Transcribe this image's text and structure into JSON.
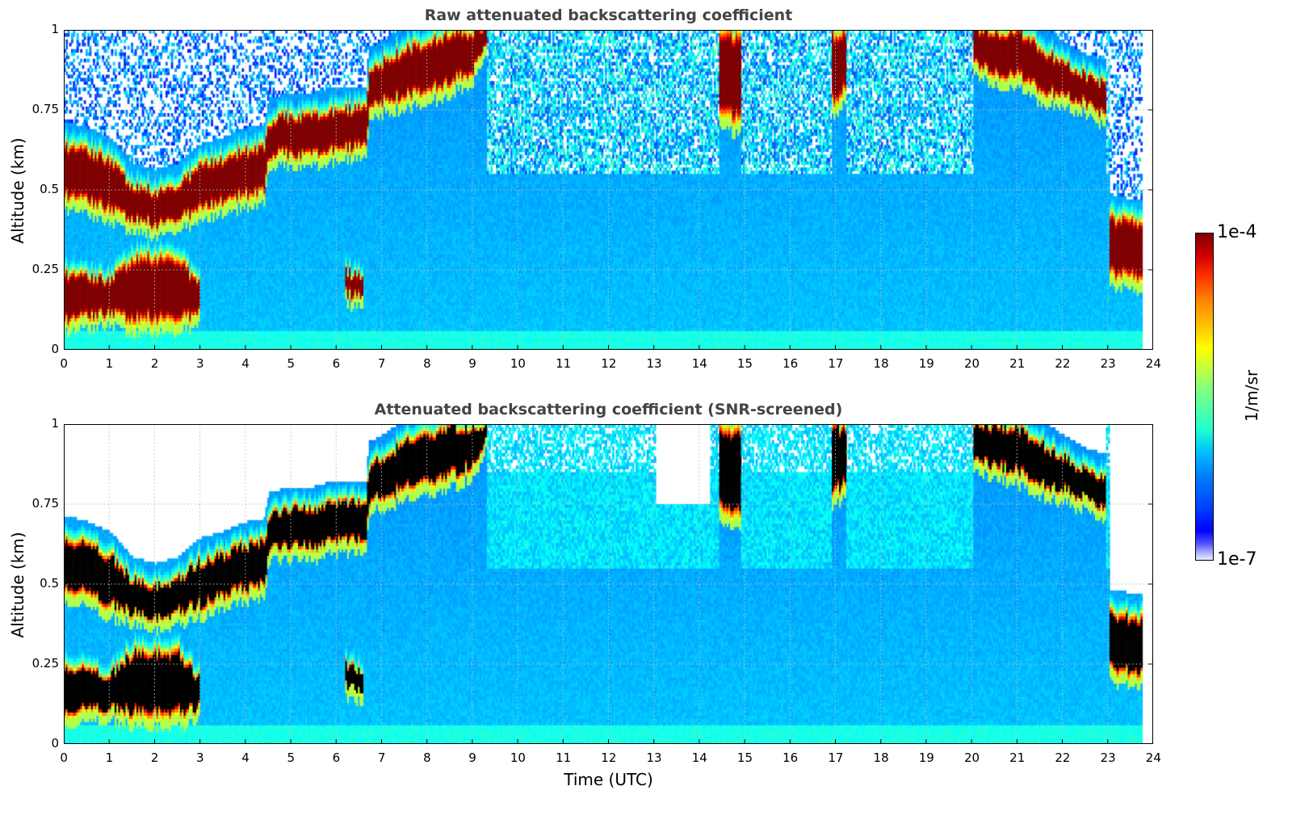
{
  "chart_data": [
    {
      "type": "heatmap",
      "title": "Raw attenuated backscattering coefficient",
      "xlabel": "",
      "ylabel": "Altitude (km)",
      "xlim": [
        0,
        24
      ],
      "ylim": [
        0,
        1
      ],
      "xticks": [
        "0",
        "1",
        "2",
        "3",
        "4",
        "5",
        "6",
        "7",
        "8",
        "9",
        "10",
        "11",
        "12",
        "13",
        "14",
        "15",
        "16",
        "17",
        "18",
        "19",
        "20",
        "21",
        "22",
        "23",
        "24"
      ],
      "yticks": [
        "0",
        "0.25",
        "0.5",
        "0.75",
        "1"
      ],
      "grid": true,
      "screened": false
    },
    {
      "type": "heatmap",
      "title": "Attenuated backscattering coefficient (SNR-screened)",
      "xlabel": "Time (UTC)",
      "ylabel": "Altitude (km)",
      "xlim": [
        0,
        24
      ],
      "ylim": [
        0,
        1
      ],
      "xticks": [
        "0",
        "1",
        "2",
        "3",
        "4",
        "5",
        "6",
        "7",
        "8",
        "9",
        "10",
        "11",
        "12",
        "13",
        "14",
        "15",
        "16",
        "17",
        "18",
        "19",
        "20",
        "21",
        "22",
        "23",
        "24"
      ],
      "yticks": [
        "0",
        "0.25",
        "0.5",
        "0.75",
        "1"
      ],
      "grid": true,
      "screened": true
    }
  ],
  "field": {
    "data_end_hour": 23.75,
    "upper_cloud_segments": [
      [
        [
          0,
          0.47,
          0.65
        ],
        [
          0.5,
          0.45,
          0.63
        ],
        [
          1,
          0.42,
          0.6
        ],
        [
          1.5,
          0.4,
          0.52
        ],
        [
          2,
          0.38,
          0.5
        ],
        [
          2.5,
          0.4,
          0.52
        ],
        [
          3,
          0.42,
          0.58
        ],
        [
          3.5,
          0.45,
          0.6
        ],
        [
          4,
          0.47,
          0.63
        ],
        [
          4.4,
          0.48,
          0.64
        ],
        [
          4.5,
          0.6,
          0.72
        ],
        [
          5,
          0.6,
          0.74
        ],
        [
          5.5,
          0.6,
          0.74
        ],
        [
          6,
          0.62,
          0.76
        ],
        [
          6.65,
          0.62,
          0.76
        ],
        [
          6.7,
          0.75,
          0.88
        ],
        [
          7,
          0.76,
          0.9
        ],
        [
          7.5,
          0.78,
          0.95
        ],
        [
          8,
          0.8,
          0.97
        ],
        [
          8.5,
          0.82,
          1
        ],
        [
          9,
          0.86,
          1
        ],
        [
          9.3,
          0.95,
          1
        ]
      ],
      [
        [
          14.4,
          0.72,
          1
        ],
        [
          14.9,
          0.7,
          1
        ]
      ],
      [
        [
          16.9,
          0.75,
          1
        ],
        [
          17.2,
          0.8,
          1
        ]
      ],
      [
        [
          20,
          0.88,
          1
        ],
        [
          20.5,
          0.85,
          1
        ],
        [
          21,
          0.84,
          1
        ],
        [
          21.5,
          0.8,
          0.95
        ],
        [
          22,
          0.78,
          0.9
        ],
        [
          22.5,
          0.76,
          0.86
        ],
        [
          22.95,
          0.72,
          0.84
        ]
      ],
      [
        [
          23,
          0.22,
          0.42
        ],
        [
          23.75,
          0.2,
          0.4
        ]
      ]
    ],
    "lower_cloud_segments": [
      [
        [
          0,
          0.08,
          0.25
        ],
        [
          1,
          0.1,
          0.22
        ],
        [
          1.5,
          0.08,
          0.3
        ],
        [
          2.5,
          0.08,
          0.3
        ],
        [
          3,
          0.1,
          0.2
        ]
      ],
      [
        [
          6.2,
          0.17,
          0.25
        ],
        [
          6.6,
          0.15,
          0.22
        ]
      ]
    ]
  },
  "colorbar": {
    "max_label": "1e-4",
    "min_label": "1e-7",
    "unit_label": "1/m/sr",
    "scale": "log"
  }
}
